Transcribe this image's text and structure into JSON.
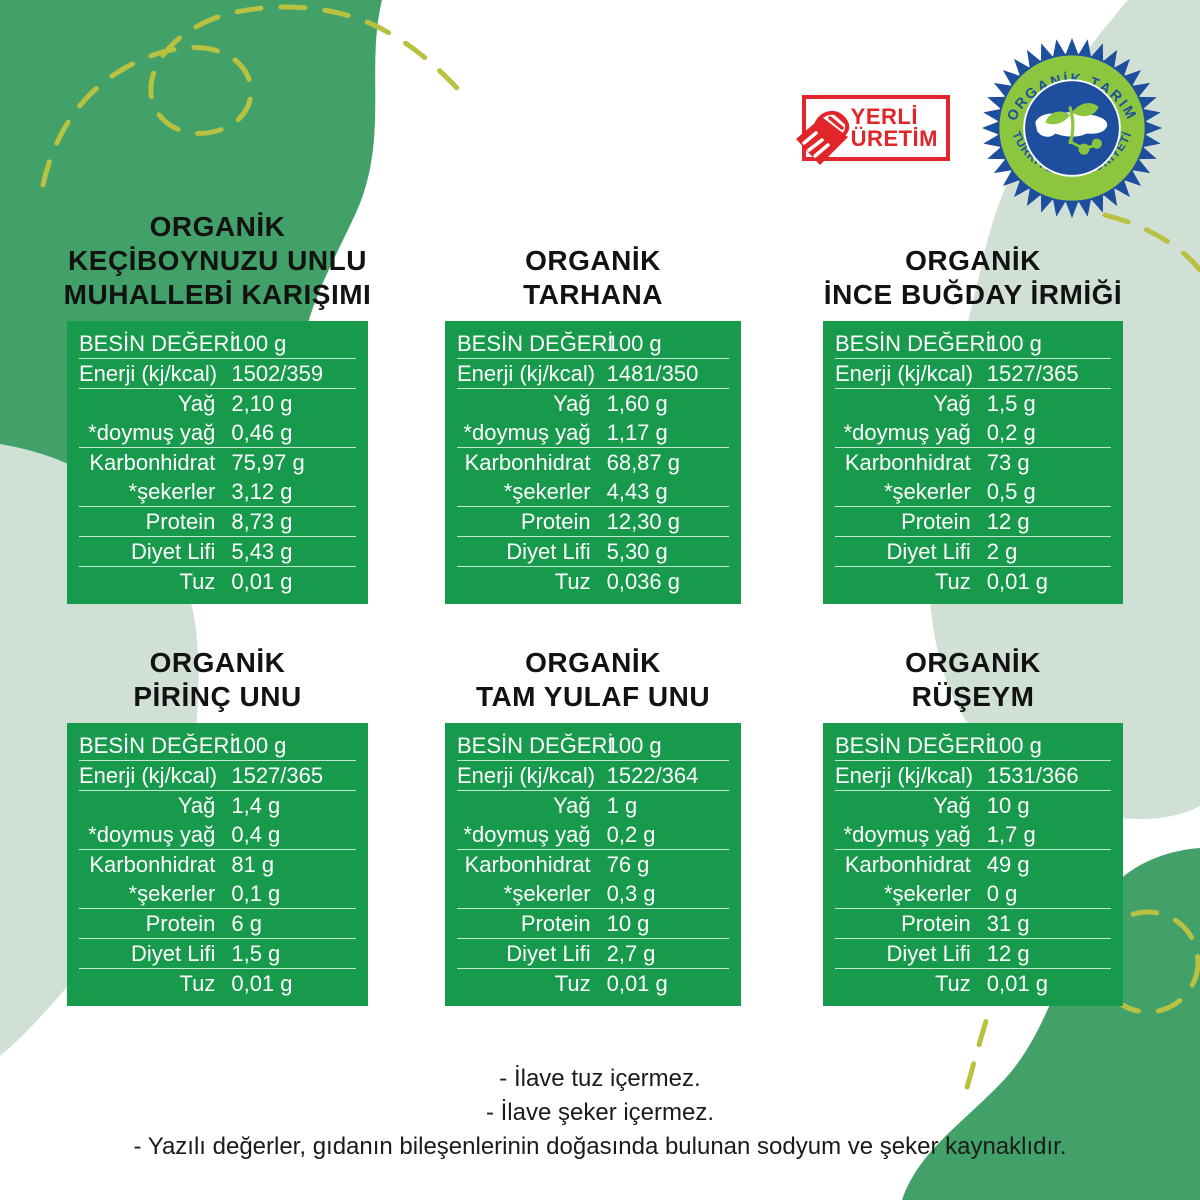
{
  "badges": {
    "production": {
      "line1": "YERLİ",
      "line2": "ÜRETİM"
    },
    "organic": {
      "top_text": "ORGANİK TARIM",
      "bottom_text": "TÜRKİYE CUMHURİYETİ"
    }
  },
  "table_template": {
    "rows": [
      {
        "key": "serving",
        "label": "BESİN DEĞERİ",
        "divider_above": false
      },
      {
        "key": "energy",
        "label": "Enerji (kj/kcal)",
        "divider_above": true
      },
      {
        "key": "fat",
        "label": "Yağ",
        "divider_above": true
      },
      {
        "key": "satfat",
        "label": "*doymuş yağ",
        "divider_above": false
      },
      {
        "key": "carb",
        "label": "Karbonhidrat",
        "divider_above": true
      },
      {
        "key": "sugar",
        "label": "*şekerler",
        "divider_above": false
      },
      {
        "key": "protein",
        "label": "Protein",
        "divider_above": true
      },
      {
        "key": "fiber",
        "label": "Diyet Lifi",
        "divider_above": true
      },
      {
        "key": "salt",
        "label": "Tuz",
        "divider_above": true
      }
    ]
  },
  "products": [
    {
      "title": [
        "ORGANİK",
        "KEÇİBOYNUZU UNLU",
        "MUHALLEBİ KARIŞIMI"
      ],
      "values": {
        "serving": "100 g",
        "energy": "1502/359",
        "fat": "2,10 g",
        "satfat": "0,46 g",
        "carb": "75,97 g",
        "sugar": "3,12 g",
        "protein": "8,73 g",
        "fiber": "5,43 g",
        "salt": "0,01 g"
      }
    },
    {
      "title": [
        "ORGANİK",
        "TARHANA"
      ],
      "values": {
        "serving": "100 g",
        "energy": "1481/350",
        "fat": "1,60 g",
        "satfat": "1,17 g",
        "carb": "68,87 g",
        "sugar": "4,43 g",
        "protein": "12,30 g",
        "fiber": "5,30 g",
        "salt": "0,036 g"
      }
    },
    {
      "title": [
        "ORGANİK",
        "İNCE BUĞDAY İRMİĞİ"
      ],
      "values": {
        "serving": "100 g",
        "energy": "1527/365",
        "fat": "1,5 g",
        "satfat": "0,2 g",
        "carb": "73 g",
        "sugar": "0,5 g",
        "protein": "12 g",
        "fiber": "2 g",
        "salt": "0,01 g"
      }
    },
    {
      "title": [
        "ORGANİK",
        "PİRİNÇ UNU"
      ],
      "values": {
        "serving": "100 g",
        "energy": "1527/365",
        "fat": "1,4 g",
        "satfat": "0,4 g",
        "carb": "81 g",
        "sugar": "0,1 g",
        "protein": "6 g",
        "fiber": "1,5 g",
        "salt": "0,01 g"
      }
    },
    {
      "title": [
        "ORGANİK",
        "TAM YULAF UNU"
      ],
      "values": {
        "serving": "100 g",
        "energy": "1522/364",
        "fat": "1 g",
        "satfat": "0,2 g",
        "carb": "76 g",
        "sugar": "0,3 g",
        "protein": "10 g",
        "fiber": "2,7 g",
        "salt": "0,01 g"
      }
    },
    {
      "title": [
        "ORGANİK",
        "RÜŞEYM"
      ],
      "values": {
        "serving": "100 g",
        "energy": "1531/366",
        "fat": "10 g",
        "satfat": "1,7 g",
        "carb": "49 g",
        "sugar": "0 g",
        "protein": "31 g",
        "fiber": "12 g",
        "salt": "0,01 g"
      }
    }
  ],
  "footnotes": [
    "- İlave tuz içermez.",
    "- İlave şeker içermez.",
    "- Yazılı değerler, gıdanın bileşenlerinin doğasında bulunan sodyum ve şeker kaynaklıdır."
  ],
  "colors": {
    "table_green": "#189a4d",
    "blob_green": "#41a168",
    "blob_pale": "#d0e0d4",
    "dash_olive": "#b8c140",
    "badge_red": "#e1252b",
    "badge_navy": "#1d4f9e",
    "badge_ring_green": "#8cc63f"
  }
}
